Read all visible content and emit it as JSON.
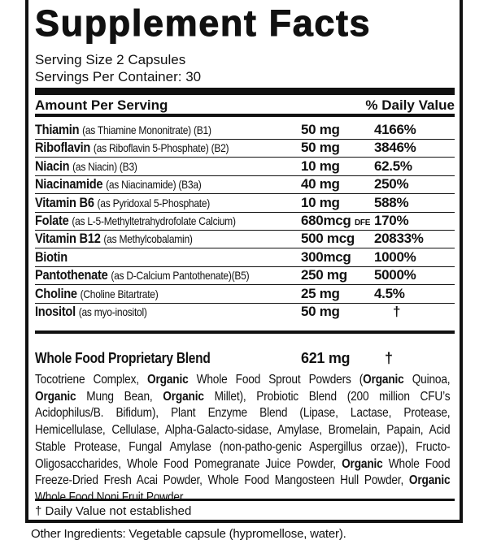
{
  "title": "Supplement Facts",
  "serving_size": "Serving Size 2 Capsules",
  "servings_per_container": "Servings Per Container: 30",
  "header": {
    "amount": "Amount Per Serving",
    "dv": "% Daily Value"
  },
  "rows": [
    {
      "name": "Thiamin",
      "detail": "(as Thiamine Mononitrate) (B1)",
      "amount": "50 mg",
      "unit_suffix": "",
      "dv": "4166%"
    },
    {
      "name": "Riboflavin",
      "detail": "(as Riboflavin 5-Phosphate) (B2)",
      "amount": "50 mg",
      "unit_suffix": "",
      "dv": "3846%"
    },
    {
      "name": "Niacin",
      "detail": "(as Niacin) (B3)",
      "amount": "10 mg",
      "unit_suffix": "",
      "dv": "62.5%"
    },
    {
      "name": "Niacinamide",
      "detail": "(as Niacinamide) (B3a)",
      "amount": "40 mg",
      "unit_suffix": "",
      "dv": "250%"
    },
    {
      "name": "Vitamin B6",
      "detail": "(as Pyridoxal 5-Phosphate)",
      "amount": "10 mg",
      "unit_suffix": "",
      "dv": "588%"
    },
    {
      "name": "Folate",
      "detail": "(as L-5-Methyltetrahydrofolate Calcium)",
      "amount": "680mcg",
      "unit_suffix": "DFE",
      "dv": "170%"
    },
    {
      "name": "Vitamin B12",
      "detail": "(as Methylcobalamin)",
      "amount": "500 mcg",
      "unit_suffix": "",
      "dv": "20833%"
    },
    {
      "name": "Biotin",
      "detail": "",
      "amount": "300mcg",
      "unit_suffix": "",
      "dv": "1000%"
    },
    {
      "name": "Pantothenate",
      "detail": "(as D-Calcium Pantothenate)(B5)",
      "amount": "250 mg",
      "unit_suffix": "",
      "dv": "5000%"
    },
    {
      "name": "Choline",
      "detail": "(Choline Bitartrate)",
      "amount": "25 mg",
      "unit_suffix": "",
      "dv": "4.5%"
    },
    {
      "name": "Inositol",
      "detail": "(as myo-inositol)",
      "amount": "50 mg",
      "unit_suffix": "",
      "dv": "†"
    }
  ],
  "blend": {
    "name": "Whole Food Proprietary Blend",
    "amount": "621 mg",
    "dv": "†",
    "parts": [
      {
        "t": "Tocotriene Complex, ",
        "b": false
      },
      {
        "t": "Organic",
        "b": true
      },
      {
        "t": " Whole Food Sprout Powders (",
        "b": false
      },
      {
        "t": "Organic",
        "b": true
      },
      {
        "t": " Quinoa, ",
        "b": false
      },
      {
        "t": "Organic",
        "b": true
      },
      {
        "t": " Mung Bean, ",
        "b": false
      },
      {
        "t": "Organic",
        "b": true
      },
      {
        "t": " Millet), Probiotic Blend (200 million CFU’s Acidophilus/B. Bifidum), Plant Enzyme Blend (Lipase, Lactase, Protease, Hemicellulase, Cellulase, Alpha-Galacto-sidase, Amylase, Bromelain, Papain, Acid Stable Protease, Fungal Amylase (non-patho-genic Aspergillus orzae)), Fructo-Oligosaccharides, Whole Food Pomegranate Juice Powder, ",
        "b": false
      },
      {
        "t": "Organic",
        "b": true
      },
      {
        "t": " Whole Food Freeze-Dried Fresh Acai Powder, Whole Food Mangosteen Hull Powder, ",
        "b": false
      },
      {
        "t": "Organic",
        "b": true
      },
      {
        "t": " Whole Food Noni Fruit Powder.",
        "b": false
      }
    ]
  },
  "note": "† Daily Value not established",
  "other_ingredients": "Other Ingredients: Vegetable capsule (hypromellose, water)."
}
